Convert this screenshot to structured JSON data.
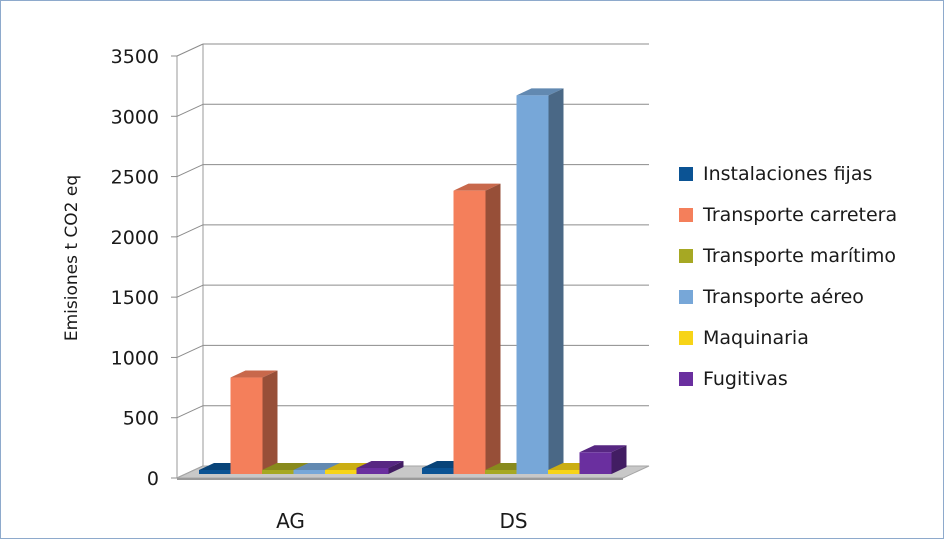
{
  "chart_data": {
    "type": "bar",
    "categories": [
      "AG",
      "DS"
    ],
    "ylabel": "Emisiones t CO2 eq",
    "ylim": [
      0,
      3500
    ],
    "yticks": [
      0,
      500,
      1000,
      1500,
      2000,
      2500,
      3000,
      3500
    ],
    "grid": true,
    "legend_position": "right",
    "series": [
      {
        "name": "Instalaciones fijas",
        "color": "#0b5394",
        "values": [
          30,
          50
        ]
      },
      {
        "name": "Transporte carretera",
        "color": "#f47f5b",
        "values": [
          800,
          2350
        ]
      },
      {
        "name": "Transporte marítimo",
        "color": "#a6a823",
        "values": [
          10,
          10
        ]
      },
      {
        "name": "Transporte aéreo",
        "color": "#77a7d8",
        "values": [
          5,
          3140
        ]
      },
      {
        "name": "Maquinaria",
        "color": "#f7d417",
        "values": [
          5,
          10
        ]
      },
      {
        "name": "Fugitivas",
        "color": "#6a2f9f",
        "values": [
          50,
          180
        ]
      }
    ]
  }
}
